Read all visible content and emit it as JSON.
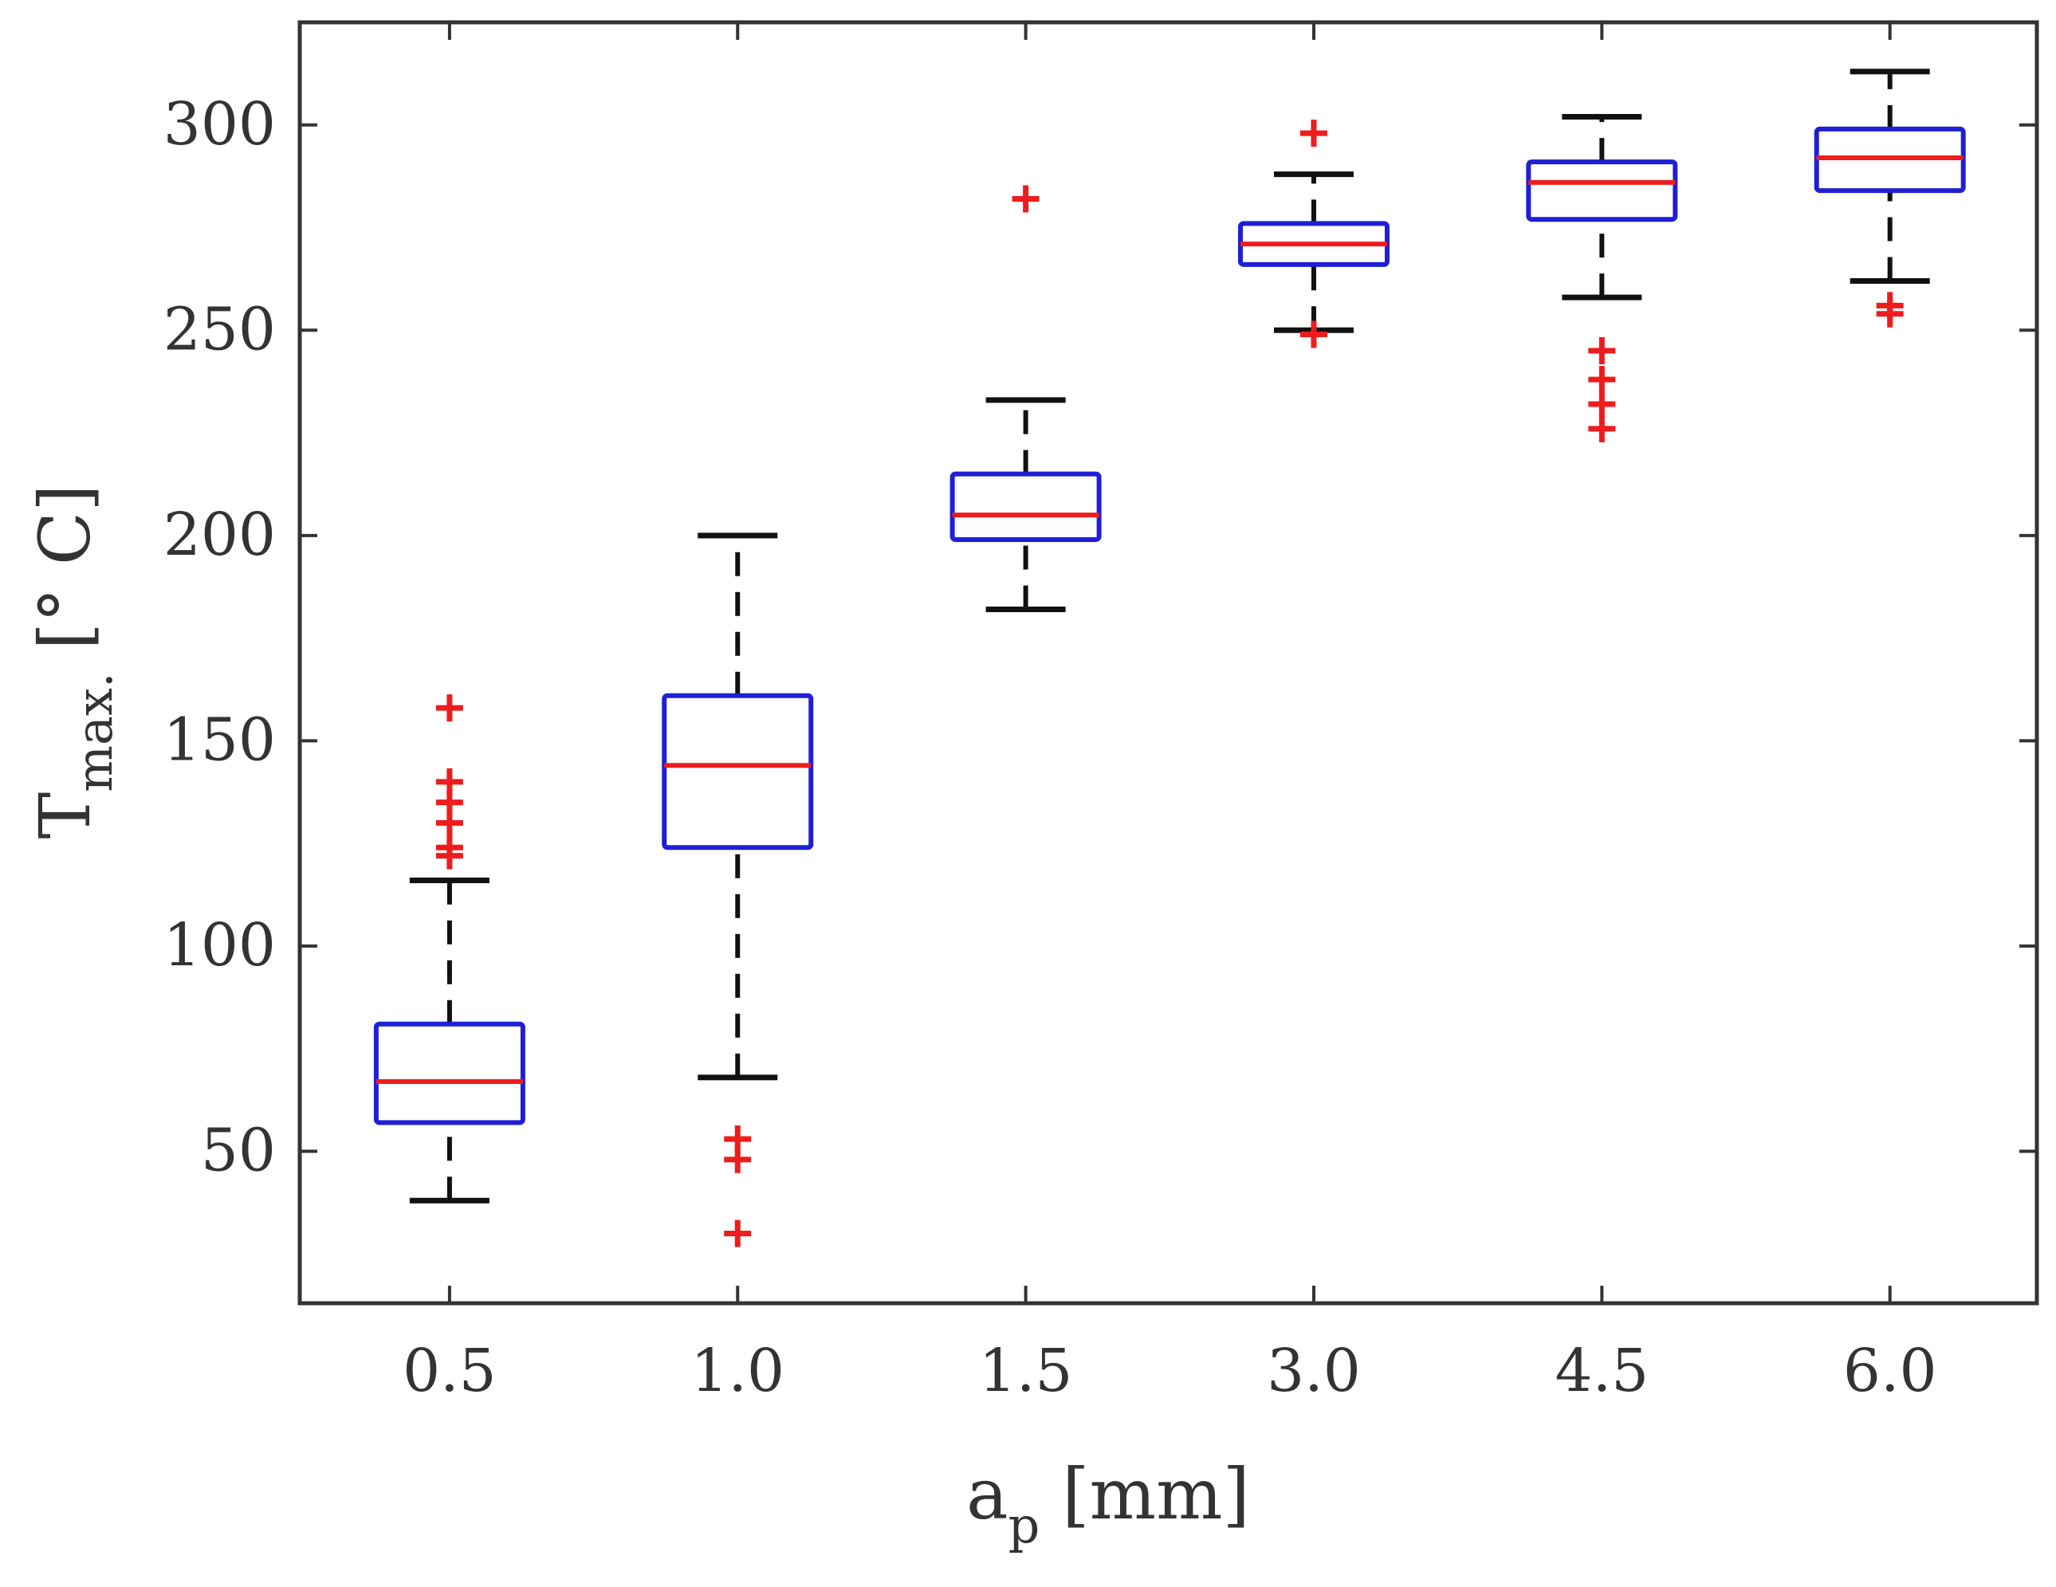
{
  "chart_data": {
    "type": "box",
    "title": "",
    "xlabel": {
      "main": "a",
      "sub": "p",
      "unit": " [mm]"
    },
    "ylabel": {
      "main": "T",
      "sub": "max.",
      "unit": " [° C]"
    },
    "categories": [
      "0.5",
      "1.0",
      "1.5",
      "3.0",
      "4.5",
      "6.0"
    ],
    "yticks": [
      50,
      100,
      150,
      200,
      250,
      300
    ],
    "ylim": [
      13,
      325
    ],
    "grid": false,
    "colors": {
      "box": "#1f1fd6",
      "median": "#ee1c1c",
      "whisker": "#111111",
      "outlier": "#ee1c1c",
      "axis": "#333333"
    },
    "boxes": [
      {
        "category": "0.5",
        "whisker_low": 38,
        "q1": 57,
        "median": 67,
        "q3": 81,
        "whisker_high": 116,
        "outliers": [
          122,
          124,
          130,
          135,
          140,
          158
        ]
      },
      {
        "category": "1.0",
        "whisker_low": 68,
        "q1": 124,
        "median": 144,
        "q3": 161,
        "whisker_high": 200,
        "outliers": [
          53,
          48,
          30
        ]
      },
      {
        "category": "1.5",
        "whisker_low": 182,
        "q1": 199,
        "median": 205,
        "q3": 215,
        "whisker_high": 233,
        "outliers": [
          282
        ]
      },
      {
        "category": "3.0",
        "whisker_low": 250,
        "q1": 266,
        "median": 271,
        "q3": 276,
        "whisker_high": 288,
        "outliers": [
          249,
          298
        ]
      },
      {
        "category": "4.5",
        "whisker_low": 258,
        "q1": 277,
        "median": 286,
        "q3": 291,
        "whisker_high": 302,
        "outliers": [
          245,
          238,
          232,
          226
        ]
      },
      {
        "category": "6.0",
        "whisker_low": 262,
        "q1": 284,
        "median": 292,
        "q3": 299,
        "whisker_high": 313,
        "outliers": [
          256,
          254
        ]
      }
    ]
  }
}
